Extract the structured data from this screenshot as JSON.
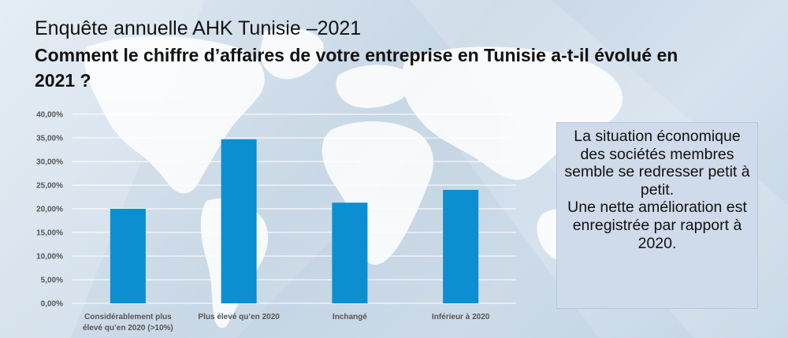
{
  "header": {
    "title": "Enquête annuelle AHK Tunisie –2021",
    "question": "Comment le chiffre d’affaires de votre entreprise en Tunisie a-t-il évolué en 2021 ?"
  },
  "callout": {
    "line1": "La situation économique des sociétés membres semble se redresser petit à petit.",
    "line2": "Une nette amélioration est enregistrée par rapport à 2020."
  },
  "colors": {
    "bar": "#0b8fd0",
    "grid": "#ffffff",
    "axis_text": "#555555"
  },
  "chart_data": {
    "type": "bar",
    "title": "",
    "xlabel": "",
    "ylabel": "",
    "categories": [
      [
        "Considérablement plus",
        "élevé qu’en 2020 (>10%)"
      ],
      [
        "Plus élevé qu’en 2020"
      ],
      [
        "Inchangé"
      ],
      [
        "Inférieur à 2020"
      ]
    ],
    "values": [
      20.0,
      34.7,
      21.3,
      24.0
    ],
    "ylim": [
      0,
      40
    ],
    "yticks": [
      0,
      5,
      10,
      15,
      20,
      25,
      30,
      35,
      40
    ],
    "ytick_labels": [
      "0,00%",
      "5,00%",
      "10,00%",
      "15,00%",
      "20,00%",
      "25,00%",
      "30,00%",
      "35,00%",
      "40,00%"
    ],
    "grid": true,
    "legend": "none"
  }
}
